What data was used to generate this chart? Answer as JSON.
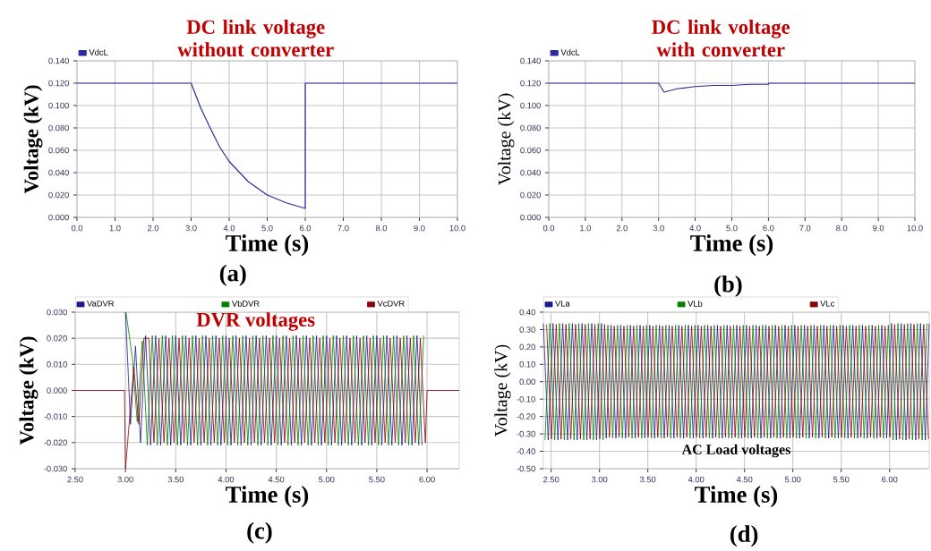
{
  "chart_data": [
    {
      "type": "line",
      "title": "DC link voltage without converter",
      "xlabel": "Time (s)",
      "ylabel": "Voltage (kV)",
      "annotations": [
        "(a)"
      ],
      "x": [
        0,
        3.0,
        3.25,
        3.5,
        3.75,
        4.0,
        4.5,
        5.0,
        5.5,
        6.0,
        6.0,
        10
      ],
      "series": [
        {
          "name": "VdcL",
          "color": "#2b2b9e",
          "values": [
            0.12,
            0.12,
            0.098,
            0.08,
            0.063,
            0.05,
            0.032,
            0.02,
            0.013,
            0.008,
            0.12,
            0.12
          ]
        }
      ],
      "xlim": [
        0,
        10
      ],
      "ylim": [
        0,
        0.14
      ],
      "xticks": [
        {
          "value": 0,
          "label": "0.0"
        },
        {
          "value": 1,
          "label": "1.0"
        },
        {
          "value": 2,
          "label": "2.0"
        },
        {
          "value": 3,
          "label": "3.0"
        },
        {
          "value": 4,
          "label": "4.0"
        },
        {
          "value": 5,
          "label": "5.0"
        },
        {
          "value": 6,
          "label": "6.0"
        },
        {
          "value": 7,
          "label": "7.0"
        },
        {
          "value": 8,
          "label": "8.0"
        },
        {
          "value": 9,
          "label": "9.0"
        },
        {
          "value": 10,
          "label": "10.0"
        }
      ],
      "yticks": [
        {
          "value": 0,
          "label": "0.000"
        },
        {
          "value": 0.02,
          "label": "0.020"
        },
        {
          "value": 0.04,
          "label": "0.040"
        },
        {
          "value": 0.06,
          "label": "0.060"
        },
        {
          "value": 0.08,
          "label": "0.080"
        },
        {
          "value": 0.1,
          "label": "0.100"
        },
        {
          "value": 0.12,
          "label": "0.120"
        },
        {
          "value": 0.14,
          "label": "0.140"
        }
      ],
      "grid": true,
      "legend": "top left",
      "line_style": "solid"
    },
    {
      "type": "line",
      "title": "DC link voltage with converter",
      "xlabel": "Time (s)",
      "ylabel": "Voltage (kV)",
      "annotations": [
        "(b)"
      ],
      "x": [
        0,
        3.0,
        3.15,
        3.5,
        4.0,
        4.5,
        5.0,
        5.5,
        6.0,
        6.0,
        10
      ],
      "series": [
        {
          "name": "VdcL",
          "color": "#2b2b9e",
          "values": [
            0.12,
            0.12,
            0.112,
            0.115,
            0.117,
            0.118,
            0.118,
            0.119,
            0.119,
            0.12,
            0.12
          ]
        }
      ],
      "xlim": [
        0,
        10
      ],
      "ylim": [
        0,
        0.14
      ],
      "xticks": [
        {
          "value": 0,
          "label": "0.0"
        },
        {
          "value": 1,
          "label": "1.0"
        },
        {
          "value": 2,
          "label": "2.0"
        },
        {
          "value": 3,
          "label": "3.0"
        },
        {
          "value": 4,
          "label": "4.0"
        },
        {
          "value": 5,
          "label": "5.0"
        },
        {
          "value": 6,
          "label": "6.0"
        },
        {
          "value": 7,
          "label": "7.0"
        },
        {
          "value": 8,
          "label": "8.0"
        },
        {
          "value": 9,
          "label": "9.0"
        },
        {
          "value": 10,
          "label": "10.0"
        }
      ],
      "yticks": [
        {
          "value": 0,
          "label": "0.000"
        },
        {
          "value": 0.02,
          "label": "0.020"
        },
        {
          "value": 0.04,
          "label": "0.040"
        },
        {
          "value": 0.06,
          "label": "0.060"
        },
        {
          "value": 0.08,
          "label": "0.080"
        },
        {
          "value": 0.1,
          "label": "0.100"
        },
        {
          "value": 0.12,
          "label": "0.120"
        },
        {
          "value": 0.14,
          "label": "0.140"
        }
      ],
      "grid": true,
      "legend": "top left",
      "line_style": "solid"
    },
    {
      "type": "line",
      "title": "DVR voltages",
      "xlabel": "Time (s)",
      "ylabel": "Voltage (kV)",
      "annotations": [
        "(c)"
      ],
      "x": [
        2.5,
        2.99,
        3.0,
        3.083,
        3.133,
        3.183,
        3.233,
        3.283,
        3.333,
        3.383,
        3.433,
        3.483,
        3.533,
        3.583,
        3.633,
        3.683,
        3.733,
        3.783,
        3.833,
        3.883,
        3.933,
        3.983,
        4.033,
        4.083,
        4.133,
        4.183,
        4.233,
        4.283,
        4.333,
        4.383,
        4.433,
        4.483,
        4.533,
        4.583,
        4.633,
        4.683,
        4.733,
        4.783,
        4.833,
        4.883,
        4.933,
        4.983,
        5.033,
        5.083,
        5.133,
        5.183,
        5.233,
        5.283,
        5.333,
        5.383,
        5.433,
        5.483,
        5.533,
        5.583,
        5.633,
        5.683,
        5.733,
        5.783,
        5.833,
        5.883,
        5.933,
        5.983,
        6.0,
        6.32
      ],
      "series": [
        {
          "name": "VaDVR",
          "color": "#1a1a8c",
          "x": [
            3.0,
            3.05,
            3.1,
            3.15,
            3.2,
            3.25,
            3.3,
            3.35,
            3.4,
            3.45,
            3.5,
            3.55,
            3.6,
            3.65,
            3.7,
            3.75,
            3.8,
            3.85,
            3.9,
            3.95,
            4.0,
            4.05,
            4.1,
            4.15,
            4.2,
            4.25,
            4.3,
            4.35,
            4.4,
            4.45,
            4.5,
            4.55,
            4.6,
            4.65,
            4.7,
            4.75,
            4.8,
            4.85,
            4.9,
            4.95,
            5.0,
            5.05,
            5.1,
            5.15,
            5.2,
            5.25,
            5.3,
            5.35,
            5.4,
            5.45,
            5.5,
            5.55,
            5.6,
            5.65,
            5.7,
            5.75,
            5.8,
            5.85,
            5.9,
            5.95
          ],
          "values": [
            0.03,
            -0.013,
            0.017,
            -0.02,
            0.021,
            -0.021,
            0.021,
            -0.021,
            0.021,
            -0.021,
            0.021,
            -0.021,
            0.021,
            -0.021,
            0.021,
            -0.021,
            0.021,
            -0.021,
            0.021,
            -0.021,
            0.021,
            -0.021,
            0.021,
            -0.021,
            0.021,
            -0.021,
            0.021,
            -0.021,
            0.021,
            -0.021,
            0.021,
            -0.021,
            0.021,
            -0.021,
            0.021,
            -0.021,
            0.021,
            -0.021,
            0.021,
            -0.021,
            0.021,
            -0.021,
            0.021,
            -0.021,
            0.021,
            -0.021,
            0.021,
            -0.021,
            0.021,
            -0.021,
            0.021,
            -0.021,
            0.021,
            -0.021,
            0.021,
            -0.021,
            0.021,
            -0.021,
            0.021,
            -0.021
          ]
        },
        {
          "name": "VbDVR",
          "color": "#008000",
          "x": [
            3.005,
            3.067,
            3.117,
            3.167,
            3.217,
            3.267,
            3.317,
            3.367,
            3.417,
            3.467,
            3.517,
            3.567,
            3.617,
            3.667,
            3.717,
            3.767,
            3.817,
            3.867,
            3.917,
            3.967,
            4.017,
            4.067,
            4.117,
            4.167,
            4.217,
            4.267,
            4.317,
            4.367,
            4.417,
            4.467,
            4.517,
            4.567,
            4.617,
            4.667,
            4.717,
            4.767,
            4.817,
            4.867,
            4.917,
            4.967,
            5.017,
            5.067,
            5.117,
            5.167,
            5.217,
            5.267,
            5.317,
            5.367,
            5.417,
            5.467,
            5.517,
            5.567,
            5.617,
            5.667,
            5.717,
            5.767,
            5.817,
            5.867,
            5.917,
            5.967
          ],
          "values": [
            0.03,
            0.013,
            -0.012,
            0.019,
            -0.021,
            0.021,
            -0.021,
            0.021,
            -0.021,
            0.021,
            -0.021,
            0.021,
            -0.021,
            0.021,
            -0.021,
            0.021,
            -0.021,
            0.021,
            -0.021,
            0.021,
            -0.021,
            0.021,
            -0.021,
            0.021,
            -0.021,
            0.021,
            -0.021,
            0.021,
            -0.021,
            0.021,
            -0.021,
            0.021,
            -0.021,
            0.021,
            -0.021,
            0.021,
            -0.021,
            0.021,
            -0.021,
            0.021,
            -0.021,
            0.021,
            -0.021,
            0.021,
            -0.021,
            0.021,
            -0.021,
            0.021,
            -0.021,
            0.021,
            -0.021,
            0.021,
            -0.021,
            0.021,
            -0.021,
            0.021,
            -0.021,
            0.021,
            -0.021,
            0.021
          ]
        },
        {
          "name": "VcDVR",
          "color": "#8b0000",
          "values": [
            0,
            0,
            -0.03,
            0.009,
            -0.013,
            0.02,
            0.02,
            -0.02,
            0.02,
            -0.02,
            0.02,
            -0.02,
            0.02,
            -0.02,
            0.02,
            -0.02,
            0.02,
            -0.02,
            0.02,
            -0.02,
            0.02,
            -0.02,
            0.02,
            -0.02,
            0.02,
            -0.02,
            0.02,
            -0.02,
            0.02,
            -0.02,
            0.02,
            -0.02,
            0.02,
            -0.02,
            0.02,
            -0.02,
            0.02,
            -0.02,
            0.02,
            -0.02,
            0.02,
            -0.02,
            0.02,
            -0.02,
            0.02,
            -0.02,
            0.02,
            -0.02,
            0.02,
            -0.02,
            0.02,
            -0.02,
            0.02,
            -0.02,
            0.02,
            -0.02,
            0.02,
            -0.02,
            0.02,
            -0.02,
            0.02,
            -0.02,
            0,
            0
          ]
        }
      ],
      "xlim": [
        2.5,
        6.32
      ],
      "ylim": [
        -0.03,
        0.03
      ],
      "xticks": [
        {
          "value": 2.5,
          "label": "2.50"
        },
        {
          "value": 3,
          "label": "3.00"
        },
        {
          "value": 3.5,
          "label": "3.50"
        },
        {
          "value": 4,
          "label": "4.00"
        },
        {
          "value": 4.5,
          "label": "4.50"
        },
        {
          "value": 5,
          "label": "5.00"
        },
        {
          "value": 5.5,
          "label": "5.50"
        },
        {
          "value": 6,
          "label": "6.00"
        }
      ],
      "yticks": [
        {
          "value": -0.03,
          "label": "-0.030"
        },
        {
          "value": -0.02,
          "label": "-0.020"
        },
        {
          "value": -0.01,
          "label": "-0.010"
        },
        {
          "value": 0,
          "label": "0.000"
        },
        {
          "value": 0.01,
          "label": "0.010"
        },
        {
          "value": 0.02,
          "label": "0.020"
        },
        {
          "value": 0.03,
          "label": "0.030"
        }
      ],
      "grid": true,
      "legend": "top",
      "line_style": "solid"
    },
    {
      "type": "line",
      "title": "AC Load voltages",
      "xlabel": "Time (s)",
      "ylabel": "Voltage (kV)",
      "annotations": [
        "(d)"
      ],
      "x": [
        2.42,
        2.47,
        2.52,
        2.57,
        2.62,
        2.67,
        2.72,
        2.77,
        2.82,
        2.87,
        2.92,
        2.97,
        3.02,
        3.07,
        3.12,
        3.17,
        3.22,
        3.27,
        3.32,
        3.37,
        3.42,
        3.47,
        3.52,
        3.57,
        3.62,
        3.67,
        3.72,
        3.77,
        3.82,
        3.87,
        3.92,
        3.97,
        4.02,
        4.07,
        4.12,
        4.17,
        4.22,
        4.27,
        4.32,
        4.37,
        4.42,
        4.47,
        4.52,
        4.57,
        4.62,
        4.67,
        4.72,
        4.77,
        4.82,
        4.87,
        4.92,
        4.97,
        5.02,
        5.07,
        5.12,
        5.17,
        5.22,
        5.27,
        5.32,
        5.37,
        5.42,
        5.47,
        5.52,
        5.57,
        5.62,
        5.67,
        5.72,
        5.77,
        5.82,
        5.87,
        5.92,
        5.97,
        6.02,
        6.07,
        6.12,
        6.17,
        6.22,
        6.27,
        6.32,
        6.37,
        6.41
      ],
      "series": [
        {
          "name": "VLa",
          "color": "#1a1a8c",
          "values": [
            0.335,
            -0.335,
            0.335,
            -0.335,
            0.335,
            -0.335,
            0.335,
            -0.335,
            0.335,
            -0.335,
            0.335,
            -0.335,
            0.335,
            -0.325,
            0.325,
            -0.325,
            0.325,
            -0.325,
            0.325,
            -0.325,
            0.325,
            -0.325,
            0.325,
            -0.325,
            0.325,
            -0.325,
            0.325,
            -0.325,
            0.325,
            -0.325,
            0.325,
            -0.325,
            0.325,
            -0.325,
            0.325,
            -0.325,
            0.325,
            -0.325,
            0.325,
            -0.325,
            0.325,
            -0.325,
            0.325,
            -0.325,
            0.325,
            -0.325,
            0.325,
            -0.325,
            0.325,
            -0.325,
            0.325,
            -0.325,
            0.325,
            -0.325,
            0.325,
            -0.325,
            0.325,
            -0.325,
            0.325,
            -0.325,
            0.325,
            -0.325,
            0.325,
            -0.325,
            0.325,
            -0.325,
            0.325,
            -0.325,
            0.325,
            -0.325,
            0.325,
            -0.325,
            0.335,
            -0.335,
            0.335,
            -0.335,
            0.335,
            -0.335,
            0.335,
            -0.335,
            0.335
          ]
        },
        {
          "name": "VLb",
          "color": "#008000",
          "x": [
            2.437,
            2.487,
            2.537,
            2.587,
            2.637,
            2.687,
            2.737,
            2.787,
            2.837,
            2.887,
            2.937,
            2.987,
            3.037,
            3.087,
            3.137,
            3.187,
            3.237,
            3.287,
            3.337,
            3.387,
            3.437,
            3.487,
            3.537,
            3.587,
            3.637,
            3.687,
            3.737,
            3.787,
            3.837,
            3.887,
            3.937,
            3.987,
            4.037,
            4.087,
            4.137,
            4.187,
            4.237,
            4.287,
            4.337,
            4.387,
            4.437,
            4.487,
            4.537,
            4.587,
            4.637,
            4.687,
            4.737,
            4.787,
            4.837,
            4.887,
            4.937,
            4.987,
            5.037,
            5.087,
            5.137,
            5.187,
            5.237,
            5.287,
            5.337,
            5.387,
            5.437,
            5.487,
            5.537,
            5.587,
            5.637,
            5.687,
            5.737,
            5.787,
            5.837,
            5.887,
            5.937,
            5.987,
            6.037,
            6.087,
            6.137,
            6.187,
            6.237,
            6.287,
            6.337,
            6.387
          ],
          "values": [
            -0.335,
            0.335,
            -0.335,
            0.335,
            -0.335,
            0.335,
            -0.335,
            0.335,
            -0.335,
            0.335,
            -0.335,
            0.335,
            -0.335,
            0.325,
            -0.325,
            0.325,
            -0.325,
            0.325,
            -0.325,
            0.325,
            -0.325,
            0.325,
            -0.325,
            0.325,
            -0.325,
            0.325,
            -0.325,
            0.325,
            -0.325,
            0.325,
            -0.325,
            0.325,
            -0.325,
            0.325,
            -0.325,
            0.325,
            -0.325,
            0.325,
            -0.325,
            0.325,
            -0.325,
            0.325,
            -0.325,
            0.325,
            -0.325,
            0.325,
            -0.325,
            0.325,
            -0.325,
            0.325,
            -0.325,
            0.325,
            -0.325,
            0.325,
            -0.325,
            0.325,
            -0.325,
            0.325,
            -0.325,
            0.325,
            -0.325,
            0.325,
            -0.325,
            0.325,
            -0.325,
            0.325,
            -0.325,
            0.325,
            -0.325,
            0.325,
            -0.325,
            0.325,
            -0.335,
            0.335,
            -0.335,
            0.335,
            -0.335,
            0.335,
            -0.335,
            0.335
          ]
        },
        {
          "name": "VLc",
          "color": "#8b0000",
          "x": [
            2.453,
            2.503,
            2.553,
            2.603,
            2.653,
            2.703,
            2.753,
            2.803,
            2.853,
            2.903,
            2.953,
            3.003,
            3.053,
            3.103,
            3.153,
            3.203,
            3.253,
            3.303,
            3.353,
            3.403,
            3.453,
            3.503,
            3.553,
            3.603,
            3.653,
            3.703,
            3.753,
            3.803,
            3.853,
            3.903,
            3.953,
            4.003,
            4.053,
            4.103,
            4.153,
            4.203,
            4.253,
            4.303,
            4.353,
            4.403,
            4.453,
            4.503,
            4.553,
            4.603,
            4.653,
            4.703,
            4.753,
            4.803,
            4.853,
            4.903,
            4.953,
            5.003,
            5.053,
            5.103,
            5.153,
            5.203,
            5.253,
            5.303,
            5.353,
            5.403,
            5.453,
            5.503,
            5.553,
            5.603,
            5.653,
            5.703,
            5.753,
            5.803,
            5.853,
            5.903,
            5.953,
            6.003,
            6.053,
            6.103,
            6.153,
            6.203,
            6.253,
            6.303,
            6.353,
            6.403
          ],
          "values": [
            0.33,
            -0.33,
            0.33,
            -0.33,
            0.33,
            -0.33,
            0.33,
            -0.33,
            0.33,
            -0.33,
            0.33,
            -0.33,
            0.33,
            -0.32,
            0.32,
            -0.32,
            0.32,
            -0.32,
            0.32,
            -0.32,
            0.32,
            -0.32,
            0.32,
            -0.32,
            0.32,
            -0.32,
            0.32,
            -0.32,
            0.32,
            -0.32,
            0.32,
            -0.32,
            0.32,
            -0.32,
            0.32,
            -0.32,
            0.32,
            -0.32,
            0.32,
            -0.32,
            0.32,
            -0.32,
            0.32,
            -0.32,
            0.32,
            -0.32,
            0.32,
            -0.32,
            0.32,
            -0.32,
            0.32,
            -0.32,
            0.32,
            -0.32,
            0.32,
            -0.32,
            0.32,
            -0.32,
            0.32,
            -0.32,
            0.32,
            -0.32,
            0.32,
            -0.32,
            0.32,
            -0.32,
            0.32,
            -0.32,
            0.32,
            -0.32,
            0.32,
            -0.32,
            0.33,
            -0.33,
            0.33,
            -0.33,
            0.33,
            -0.33,
            0.33,
            -0.33
          ]
        }
      ],
      "xlim": [
        2.42,
        6.41
      ],
      "ylim": [
        -0.5,
        0.4
      ],
      "xticks": [
        {
          "value": 2.5,
          "label": "2.50"
        },
        {
          "value": 3,
          "label": "3.00"
        },
        {
          "value": 3.5,
          "label": "3.50"
        },
        {
          "value": 4,
          "label": "4.00"
        },
        {
          "value": 4.5,
          "label": "4.50"
        },
        {
          "value": 5,
          "label": "5.00"
        },
        {
          "value": 5.5,
          "label": "5.50"
        },
        {
          "value": 6,
          "label": "6.00"
        }
      ],
      "yticks": [
        {
          "value": -0.5,
          "label": "-0.50"
        },
        {
          "value": -0.4,
          "label": "-0.40"
        },
        {
          "value": -0.3,
          "label": "-0.30"
        },
        {
          "value": -0.2,
          "label": "-0.20"
        },
        {
          "value": -0.1,
          "label": "-0.10"
        },
        {
          "value": 0,
          "label": "0.00"
        },
        {
          "value": 0.1,
          "label": "0.10"
        },
        {
          "value": 0.2,
          "label": "0.20"
        },
        {
          "value": 0.3,
          "label": "0.30"
        },
        {
          "value": 0.4,
          "label": "0.40"
        }
      ],
      "grid": true,
      "legend": "top",
      "line_style": "solid"
    }
  ]
}
